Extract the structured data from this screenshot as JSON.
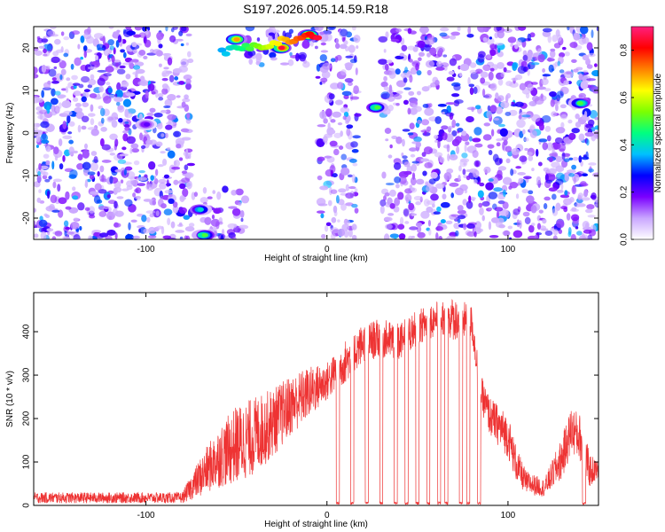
{
  "title": "S197.2026.005.14.59.R18",
  "chart_data": [
    {
      "type": "heatmap",
      "xlabel": "Height of straight line (km)",
      "ylabel": "Frequency (Hz)",
      "xlim": [
        -162,
        150
      ],
      "ylim": [
        -25,
        25
      ],
      "xticks": [
        -100,
        0,
        100
      ],
      "yticks": [
        -20,
        -10,
        0,
        10,
        20
      ],
      "colorbar": {
        "label": "Normalized spectral amplitude",
        "range": [
          0.0,
          0.9
        ],
        "ticks": [
          0.0,
          0.2,
          0.4,
          0.6,
          0.8
        ],
        "colors": [
          "#ffffff",
          "#c9a6ff",
          "#7a00ff",
          "#0000ff",
          "#00c0ff",
          "#00ff80",
          "#7cff00",
          "#ffff00",
          "#ff8000",
          "#ff0000",
          "#ff2080"
        ]
      },
      "empty_bands_km": [
        [
          -75,
          -45
        ],
        [
          -45,
          -5
        ],
        [
          17,
          30
        ]
      ],
      "hot_spots": [
        {
          "x": -50,
          "y": 22,
          "v": 0.7
        },
        {
          "x": -25,
          "y": 20,
          "v": 0.85
        },
        {
          "x": -10,
          "y": 23,
          "v": 0.9
        },
        {
          "x": -68,
          "y": -24,
          "v": 0.5
        },
        {
          "x": -70,
          "y": -18,
          "v": 0.4
        },
        {
          "x": 27,
          "y": 6,
          "v": 0.5
        },
        {
          "x": 140,
          "y": 7,
          "v": 0.5
        },
        {
          "x": -100,
          "y": 2,
          "v": 0.2
        }
      ]
    },
    {
      "type": "line",
      "xlabel": "Height of straight line (km)",
      "ylabel": "SNR (10 * v/v)",
      "xlim": [
        -162,
        150
      ],
      "ylim": [
        0,
        490
      ],
      "xticks": [
        -100,
        0,
        100
      ],
      "yticks": [
        0,
        100,
        200,
        300,
        400
      ],
      "color": "#ee3333",
      "envelope": [
        {
          "x": -162,
          "low": 5,
          "high": 30
        },
        {
          "x": -80,
          "low": 5,
          "high": 30
        },
        {
          "x": -70,
          "low": 20,
          "high": 110
        },
        {
          "x": -60,
          "low": 40,
          "high": 180
        },
        {
          "x": -50,
          "low": 50,
          "high": 230
        },
        {
          "x": -40,
          "low": 70,
          "high": 250
        },
        {
          "x": -30,
          "low": 110,
          "high": 270
        },
        {
          "x": -20,
          "low": 160,
          "high": 300
        },
        {
          "x": -10,
          "low": 200,
          "high": 320
        },
        {
          "x": 0,
          "low": 240,
          "high": 330
        },
        {
          "x": 10,
          "low": 280,
          "high": 380
        },
        {
          "x": 20,
          "low": 330,
          "high": 420
        },
        {
          "x": 30,
          "low": 340,
          "high": 430
        },
        {
          "x": 40,
          "low": 330,
          "high": 420
        },
        {
          "x": 50,
          "low": 370,
          "high": 450
        },
        {
          "x": 60,
          "low": 390,
          "high": 470
        },
        {
          "x": 70,
          "low": 380,
          "high": 480
        },
        {
          "x": 80,
          "low": 380,
          "high": 460
        },
        {
          "x": 85,
          "low": 220,
          "high": 300
        },
        {
          "x": 90,
          "low": 160,
          "high": 250
        },
        {
          "x": 100,
          "low": 110,
          "high": 210
        },
        {
          "x": 105,
          "low": 50,
          "high": 130
        },
        {
          "x": 110,
          "low": 25,
          "high": 80
        },
        {
          "x": 120,
          "low": 20,
          "high": 60
        },
        {
          "x": 130,
          "low": 60,
          "high": 160
        },
        {
          "x": 135,
          "low": 120,
          "high": 230
        },
        {
          "x": 140,
          "low": 100,
          "high": 210
        },
        {
          "x": 145,
          "low": 40,
          "high": 120
        },
        {
          "x": 150,
          "low": 60,
          "high": 100
        }
      ],
      "dropouts_km": [
        6,
        14,
        22,
        30,
        38,
        44,
        50,
        56,
        62,
        66,
        74,
        78,
        84,
        142
      ]
    }
  ]
}
